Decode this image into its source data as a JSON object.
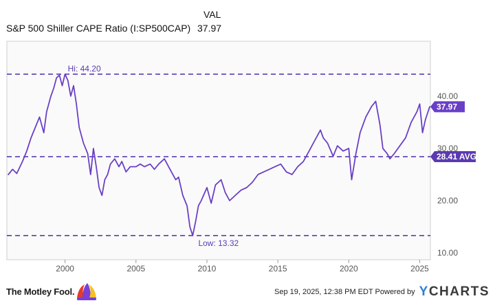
{
  "header": {
    "col_label": "VAL",
    "series_name": "S&P 500 Shiller CAPE Ratio (I:SP500CAP)",
    "series_value": "37.97"
  },
  "footer": {
    "brand": "The Motley Fool.",
    "timestamp": "Sep 19, 2025, 12:38 PM EDT Powered by",
    "provider": "YCHARTS",
    "provider_initial": "Y",
    "provider_rest": "CHARTS"
  },
  "colors": {
    "series": "#6a3fc6",
    "reference": "#5b3ab0",
    "plot_bg": "#fafafa",
    "plot_border": "#cfcfcf",
    "jester_red": "#e43b2d",
    "jester_purple": "#7a3fd6",
    "jester_yellow": "#f6c026"
  },
  "chart_data": {
    "type": "line",
    "title": "",
    "xlabel": "",
    "ylabel": "",
    "xlim": [
      1995.9,
      2025.75
    ],
    "ylim": [
      8.7,
      50.5
    ],
    "x_ticks": [
      {
        "value": 2000,
        "label": "2000"
      },
      {
        "value": 2005,
        "label": "2005"
      },
      {
        "value": 2010,
        "label": "2010"
      },
      {
        "value": 2015,
        "label": "2015"
      },
      {
        "value": 2020,
        "label": "2020"
      },
      {
        "value": 2025,
        "label": "2025"
      }
    ],
    "y_ticks": [
      {
        "value": 10,
        "label": "10.00"
      },
      {
        "value": 20,
        "label": "20.00"
      },
      {
        "value": 30,
        "label": "30.00"
      },
      {
        "value": 40,
        "label": "40.00"
      }
    ],
    "grid": false,
    "reference_lines": [
      {
        "value": 44.2,
        "label": "Hi: 44.20",
        "label_position": "above-left",
        "at_x": 2000
      },
      {
        "value": 28.41,
        "label": "28.41 AVG",
        "label_position": "right-tag"
      },
      {
        "value": 13.32,
        "label": "Low: 13.32",
        "label_position": "below",
        "at_x": 2009.2
      }
    ],
    "current_value": {
      "value": 37.97,
      "label": "37.97"
    },
    "series": [
      {
        "name": "S&P 500 Shiller CAPE Ratio",
        "x": [
          1996.0,
          1996.3,
          1996.6,
          1997.0,
          1997.3,
          1997.6,
          1997.9,
          1998.2,
          1998.5,
          1998.7,
          1999.0,
          1999.2,
          1999.4,
          1999.6,
          1999.8,
          2000.0,
          2000.2,
          2000.4,
          2000.6,
          2000.8,
          2001.0,
          2001.3,
          2001.6,
          2001.8,
          2002.0,
          2002.2,
          2002.4,
          2002.6,
          2002.8,
          2003.0,
          2003.2,
          2003.5,
          2003.8,
          2004.0,
          2004.3,
          2004.6,
          2005.0,
          2005.3,
          2005.6,
          2006.0,
          2006.3,
          2006.6,
          2007.0,
          2007.4,
          2007.8,
          2008.0,
          2008.3,
          2008.6,
          2008.8,
          2009.0,
          2009.2,
          2009.4,
          2009.6,
          2010.0,
          2010.3,
          2010.6,
          2011.0,
          2011.3,
          2011.6,
          2012.0,
          2012.4,
          2012.8,
          2013.2,
          2013.6,
          2014.0,
          2014.4,
          2014.8,
          2015.2,
          2015.6,
          2016.0,
          2016.4,
          2016.8,
          2017.2,
          2017.6,
          2018.0,
          2018.2,
          2018.5,
          2018.9,
          2019.2,
          2019.6,
          2020.0,
          2020.2,
          2020.5,
          2020.8,
          2021.2,
          2021.6,
          2021.9,
          2022.2,
          2022.4,
          2022.7,
          2022.9,
          2023.2,
          2023.6,
          2024.0,
          2024.4,
          2024.8,
          2025.0,
          2025.2,
          2025.4,
          2025.7
        ],
        "values": [
          25.0,
          26.0,
          25.2,
          27.5,
          29.5,
          32.0,
          34.0,
          36.0,
          33.0,
          37.0,
          40.0,
          41.5,
          43.5,
          44.0,
          42.0,
          44.2,
          43.0,
          40.0,
          42.0,
          38.5,
          34.0,
          31.0,
          29.0,
          25.0,
          30.0,
          26.5,
          22.5,
          21.0,
          24.0,
          25.0,
          27.0,
          28.0,
          26.5,
          27.5,
          25.5,
          26.5,
          26.5,
          27.0,
          26.5,
          27.0,
          26.0,
          27.0,
          28.0,
          26.0,
          24.0,
          24.5,
          21.0,
          19.0,
          15.0,
          13.32,
          16.0,
          19.0,
          20.0,
          22.5,
          19.5,
          23.0,
          24.0,
          21.5,
          20.0,
          21.0,
          22.0,
          22.5,
          23.5,
          25.0,
          25.5,
          26.0,
          26.5,
          27.0,
          25.5,
          25.0,
          26.5,
          27.5,
          29.5,
          31.5,
          33.5,
          32.0,
          31.0,
          28.5,
          30.5,
          29.5,
          30.0,
          24.0,
          29.0,
          33.0,
          36.0,
          38.0,
          39.0,
          34.5,
          30.0,
          29.0,
          28.0,
          29.0,
          30.5,
          32.0,
          35.0,
          37.0,
          38.5,
          33.0,
          35.5,
          37.97
        ]
      }
    ]
  }
}
